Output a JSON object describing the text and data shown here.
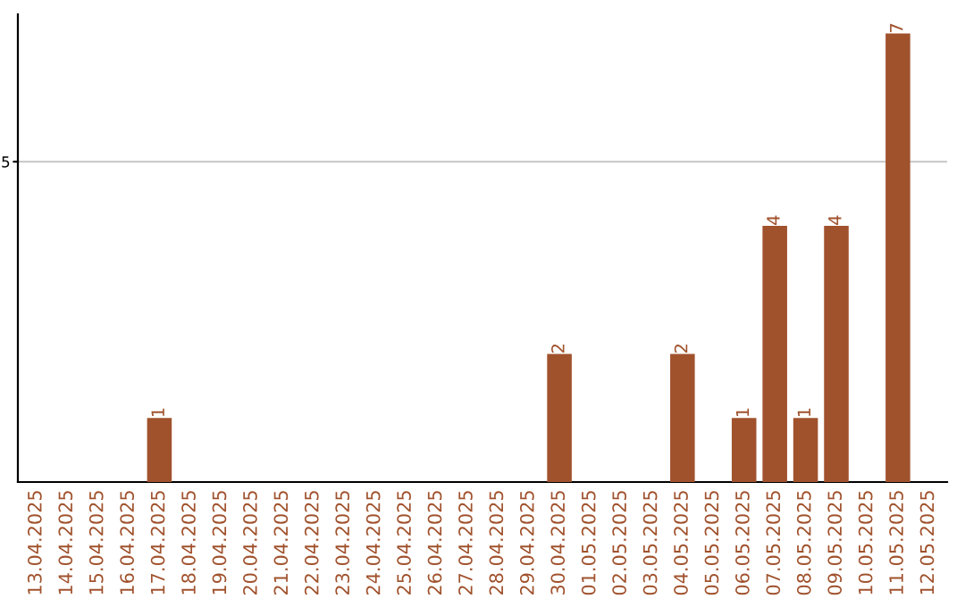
{
  "chart_data": {
    "type": "bar",
    "categories": [
      "13.04.2025",
      "14.04.2025",
      "15.04.2025",
      "16.04.2025",
      "17.04.2025",
      "18.04.2025",
      "19.04.2025",
      "20.04.2025",
      "21.04.2025",
      "22.04.2025",
      "23.04.2025",
      "24.04.2025",
      "25.04.2025",
      "26.04.2025",
      "27.04.2025",
      "28.04.2025",
      "29.04.2025",
      "30.04.2025",
      "01.05.2025",
      "02.05.2025",
      "03.05.2025",
      "04.05.2025",
      "05.05.2025",
      "06.05.2025",
      "07.05.2025",
      "08.05.2025",
      "09.05.2025",
      "10.05.2025",
      "11.05.2025",
      "12.05.2025"
    ],
    "values": [
      0,
      0,
      0,
      0,
      1,
      0,
      0,
      0,
      0,
      0,
      0,
      0,
      0,
      0,
      0,
      0,
      0,
      2,
      0,
      0,
      0,
      2,
      0,
      1,
      4,
      1,
      4,
      0,
      7,
      0
    ],
    "value_labels": [
      null,
      null,
      null,
      null,
      "1",
      null,
      null,
      null,
      null,
      null,
      null,
      null,
      null,
      null,
      null,
      null,
      null,
      "2",
      null,
      null,
      null,
      "2",
      null,
      "1",
      "4",
      "1",
      "4",
      null,
      "7",
      null
    ],
    "color": "#a0522d",
    "ylim": [
      0,
      7.3
    ],
    "yticks": [
      5
    ],
    "grid": "y"
  }
}
